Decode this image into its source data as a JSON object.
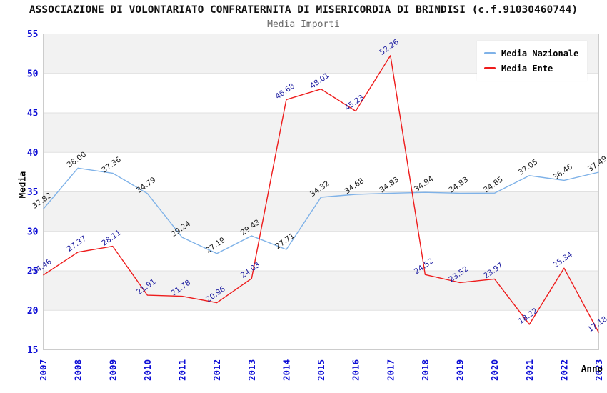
{
  "chart_data": {
    "type": "line",
    "title": "ASSOCIAZIONE DI VOLONTARIATO CONFRATERNITA DI MISERICORDIA DI BRINDISI (c.f.91030460744)",
    "subtitle": "Media Importi",
    "xlabel": "Anno",
    "ylabel": "Media",
    "x": [
      2007,
      2008,
      2009,
      2010,
      2011,
      2012,
      2013,
      2014,
      2015,
      2016,
      2017,
      2018,
      2019,
      2020,
      2021,
      2022,
      2023
    ],
    "ylim": [
      15,
      55
    ],
    "ytick_step": 5,
    "grid": true,
    "alternating_bands": true,
    "legend_position": "top-right",
    "series": [
      {
        "name": "Media Nazionale",
        "color": "#7fb2e8",
        "label_color": "#1a1a1a",
        "values": [
          32.82,
          38.0,
          37.36,
          34.79,
          29.24,
          27.19,
          29.43,
          27.71,
          34.32,
          34.68,
          34.83,
          34.94,
          34.83,
          34.85,
          37.05,
          36.46,
          37.49
        ]
      },
      {
        "name": "Media Ente",
        "color": "#ee1c1c",
        "label_color": "#1c1ca0",
        "values": [
          24.46,
          27.37,
          28.11,
          21.91,
          21.78,
          20.96,
          24.03,
          46.68,
          48.01,
          45.23,
          52.26,
          24.52,
          23.52,
          23.97,
          18.22,
          25.34,
          17.18
        ]
      }
    ],
    "palette": {
      "band": "#f2f2f2",
      "gridline": "#e0e0e0",
      "plot_border": "#cccccc",
      "tick_label": "#0d0dd6",
      "axis_title": "#000000",
      "title": "#111111",
      "subtitle": "#666666",
      "legend_bg": "#ffffff"
    }
  }
}
